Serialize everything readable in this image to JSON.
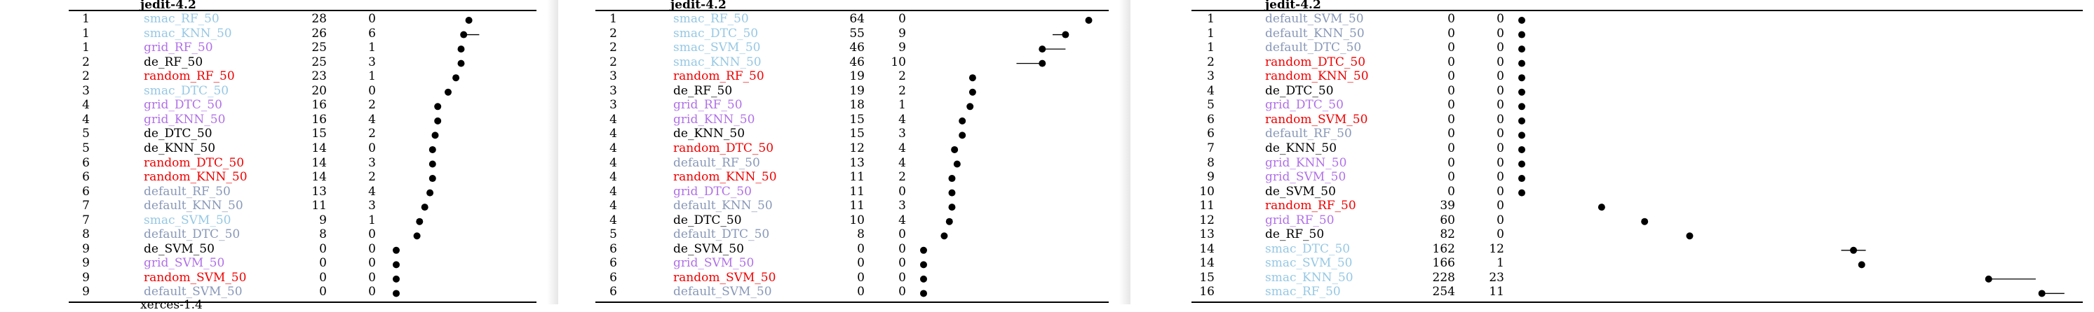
{
  "colors": {
    "smac": "#96c8e4",
    "grid": "#b070e8",
    "de": "#000000",
    "random": "#f00000",
    "default": "#8898b8"
  },
  "panels": [
    {
      "title": "jedit-4.2",
      "footer_label": "xerces-1.4",
      "rows": [
        {
          "rank": "1",
          "name": "smac_RF_50",
          "group": "smac",
          "median": 28,
          "iqr": "0",
          "err_low": 0,
          "err_high": 0
        },
        {
          "rank": "1",
          "name": "smac_KNN_50",
          "group": "smac",
          "median": 26,
          "iqr": "6",
          "err_low": 0,
          "err_high": 6
        },
        {
          "rank": "1",
          "name": "grid_RF_50",
          "group": "grid",
          "median": 25,
          "iqr": "1",
          "err_low": 0,
          "err_high": 1
        },
        {
          "rank": "2",
          "name": "de_RF_50",
          "group": "de",
          "median": 25,
          "iqr": "3",
          "err_low": 0,
          "err_high": 0
        },
        {
          "rank": "2",
          "name": "random_RF_50",
          "group": "random",
          "median": 23,
          "iqr": "1",
          "err_low": 0,
          "err_high": 0
        },
        {
          "rank": "3",
          "name": "smac_DTC_50",
          "group": "smac",
          "median": 20,
          "iqr": "0",
          "err_low": 0,
          "err_high": 0
        },
        {
          "rank": "4",
          "name": "grid_DTC_50",
          "group": "grid",
          "median": 16,
          "iqr": "2",
          "err_low": 0,
          "err_high": 0
        },
        {
          "rank": "4",
          "name": "grid_KNN_50",
          "group": "grid",
          "median": 16,
          "iqr": "4",
          "err_low": 0,
          "err_high": 0
        },
        {
          "rank": "5",
          "name": "de_DTC_50",
          "group": "de",
          "median": 15,
          "iqr": "2",
          "err_low": 0,
          "err_high": 0
        },
        {
          "rank": "5",
          "name": "de_KNN_50",
          "group": "de",
          "median": 14,
          "iqr": "0",
          "err_low": 0,
          "err_high": 0
        },
        {
          "rank": "6",
          "name": "random_DTC_50",
          "group": "random",
          "median": 14,
          "iqr": "3",
          "err_low": 0,
          "err_high": 0
        },
        {
          "rank": "6",
          "name": "random_KNN_50",
          "group": "random",
          "median": 14,
          "iqr": "2",
          "err_low": 0,
          "err_high": 0
        },
        {
          "rank": "6",
          "name": "default_RF_50",
          "group": "default",
          "median": 13,
          "iqr": "4",
          "err_low": 0,
          "err_high": 0
        },
        {
          "rank": "7",
          "name": "default_KNN_50",
          "group": "default",
          "median": 11,
          "iqr": "3",
          "err_low": 0,
          "err_high": 0
        },
        {
          "rank": "7",
          "name": "smac_SVM_50",
          "group": "smac",
          "median": 9,
          "iqr": "1",
          "err_low": 0,
          "err_high": 0
        },
        {
          "rank": "8",
          "name": "default_DTC_50",
          "group": "default",
          "median": 8,
          "iqr": "0",
          "err_low": 0,
          "err_high": 0
        },
        {
          "rank": "9",
          "name": "de_SVM_50",
          "group": "de",
          "median": 0,
          "iqr": "0",
          "err_low": 0,
          "err_high": 0
        },
        {
          "rank": "9",
          "name": "grid_SVM_50",
          "group": "grid",
          "median": 0,
          "iqr": "0",
          "err_low": 0,
          "err_high": 0
        },
        {
          "rank": "9",
          "name": "random_SVM_50",
          "group": "random",
          "median": 0,
          "iqr": "0",
          "err_low": 0,
          "err_high": 0
        },
        {
          "rank": "9",
          "name": "default_SVM_50",
          "group": "default",
          "median": 0,
          "iqr": "0",
          "err_low": 0,
          "err_high": 0
        }
      ]
    },
    {
      "title": "jedit-4.2",
      "footer_label": "",
      "rows": [
        {
          "rank": "1",
          "name": "smac_RF_50",
          "group": "smac",
          "median": 64,
          "iqr": "0",
          "err_low": 0,
          "err_high": 0
        },
        {
          "rank": "2",
          "name": "smac_DTC_50",
          "group": "smac",
          "median": 55,
          "iqr": "9",
          "err_low": 5,
          "err_high": 0
        },
        {
          "rank": "2",
          "name": "smac_SVM_50",
          "group": "smac",
          "median": 46,
          "iqr": "9",
          "err_low": 0,
          "err_high": 9
        },
        {
          "rank": "2",
          "name": "smac_KNN_50",
          "group": "smac",
          "median": 46,
          "iqr": "10",
          "err_low": 10,
          "err_high": 0
        },
        {
          "rank": "3",
          "name": "random_RF_50",
          "group": "random",
          "median": 19,
          "iqr": "2",
          "err_low": 0,
          "err_high": 0
        },
        {
          "rank": "3",
          "name": "de_RF_50",
          "group": "de",
          "median": 19,
          "iqr": "2",
          "err_low": 0,
          "err_high": 0
        },
        {
          "rank": "3",
          "name": "grid_RF_50",
          "group": "grid",
          "median": 18,
          "iqr": "1",
          "err_low": 0,
          "err_high": 0
        },
        {
          "rank": "4",
          "name": "grid_KNN_50",
          "group": "grid",
          "median": 15,
          "iqr": "4",
          "err_low": 0,
          "err_high": 0
        },
        {
          "rank": "4",
          "name": "de_KNN_50",
          "group": "de",
          "median": 15,
          "iqr": "3",
          "err_low": 0,
          "err_high": 0
        },
        {
          "rank": "4",
          "name": "random_DTC_50",
          "group": "random",
          "median": 12,
          "iqr": "4",
          "err_low": 0,
          "err_high": 0
        },
        {
          "rank": "4",
          "name": "default_RF_50",
          "group": "default",
          "median": 13,
          "iqr": "4",
          "err_low": 0,
          "err_high": 0
        },
        {
          "rank": "4",
          "name": "random_KNN_50",
          "group": "random",
          "median": 11,
          "iqr": "2",
          "err_low": 0,
          "err_high": 0
        },
        {
          "rank": "4",
          "name": "grid_DTC_50",
          "group": "grid",
          "median": 11,
          "iqr": "0",
          "err_low": 0,
          "err_high": 0
        },
        {
          "rank": "4",
          "name": "default_KNN_50",
          "group": "default",
          "median": 11,
          "iqr": "3",
          "err_low": 0,
          "err_high": 0
        },
        {
          "rank": "4",
          "name": "de_DTC_50",
          "group": "de",
          "median": 10,
          "iqr": "4",
          "err_low": 0,
          "err_high": 0
        },
        {
          "rank": "5",
          "name": "default_DTC_50",
          "group": "default",
          "median": 8,
          "iqr": "0",
          "err_low": 0,
          "err_high": 0
        },
        {
          "rank": "6",
          "name": "de_SVM_50",
          "group": "de",
          "median": 0,
          "iqr": "0",
          "err_low": 0,
          "err_high": 0
        },
        {
          "rank": "6",
          "name": "grid_SVM_50",
          "group": "grid",
          "median": 0,
          "iqr": "0",
          "err_low": 0,
          "err_high": 0
        },
        {
          "rank": "6",
          "name": "random_SVM_50",
          "group": "random",
          "median": 0,
          "iqr": "0",
          "err_low": 0,
          "err_high": 0
        },
        {
          "rank": "6",
          "name": "default_SVM_50",
          "group": "default",
          "median": 0,
          "iqr": "0",
          "err_low": 0,
          "err_high": 0
        }
      ]
    },
    {
      "title": "jedit-4.2",
      "footer_label": "",
      "rows": [
        {
          "rank": "1",
          "name": "default_SVM_50",
          "group": "default",
          "median": 0,
          "iqr": "0",
          "err_low": 0,
          "err_high": 0
        },
        {
          "rank": "1",
          "name": "default_KNN_50",
          "group": "default",
          "median": 0,
          "iqr": "0",
          "err_low": 0,
          "err_high": 0
        },
        {
          "rank": "1",
          "name": "default_DTC_50",
          "group": "default",
          "median": 0,
          "iqr": "0",
          "err_low": 0,
          "err_high": 0
        },
        {
          "rank": "2",
          "name": "random_DTC_50",
          "group": "random",
          "median": 0,
          "iqr": "0",
          "err_low": 0,
          "err_high": 0
        },
        {
          "rank": "3",
          "name": "random_KNN_50",
          "group": "random",
          "median": 0,
          "iqr": "0",
          "err_low": 0,
          "err_high": 0
        },
        {
          "rank": "4",
          "name": "de_DTC_50",
          "group": "de",
          "median": 0,
          "iqr": "0",
          "err_low": 0,
          "err_high": 0
        },
        {
          "rank": "5",
          "name": "grid_DTC_50",
          "group": "grid",
          "median": 0,
          "iqr": "0",
          "err_low": 0,
          "err_high": 0
        },
        {
          "rank": "6",
          "name": "random_SVM_50",
          "group": "random",
          "median": 0,
          "iqr": "0",
          "err_low": 0,
          "err_high": 0
        },
        {
          "rank": "6",
          "name": "default_RF_50",
          "group": "default",
          "median": 0,
          "iqr": "0",
          "err_low": 0,
          "err_high": 0
        },
        {
          "rank": "7",
          "name": "de_KNN_50",
          "group": "de",
          "median": 0,
          "iqr": "0",
          "err_low": 0,
          "err_high": 0
        },
        {
          "rank": "8",
          "name": "grid_KNN_50",
          "group": "grid",
          "median": 0,
          "iqr": "0",
          "err_low": 0,
          "err_high": 0
        },
        {
          "rank": "9",
          "name": "grid_SVM_50",
          "group": "grid",
          "median": 0,
          "iqr": "0",
          "err_low": 0,
          "err_high": 0
        },
        {
          "rank": "10",
          "name": "de_SVM_50",
          "group": "de",
          "median": 0,
          "iqr": "0",
          "err_low": 0,
          "err_high": 0
        },
        {
          "rank": "11",
          "name": "random_RF_50",
          "group": "random",
          "median": 39,
          "iqr": "0",
          "err_low": 0,
          "err_high": 0
        },
        {
          "rank": "12",
          "name": "grid_RF_50",
          "group": "grid",
          "median": 60,
          "iqr": "0",
          "err_low": 0,
          "err_high": 0
        },
        {
          "rank": "13",
          "name": "de_RF_50",
          "group": "de",
          "median": 82,
          "iqr": "0",
          "err_low": 0,
          "err_high": 0
        },
        {
          "rank": "14",
          "name": "smac_DTC_50",
          "group": "smac",
          "median": 162,
          "iqr": "12",
          "err_low": 6,
          "err_high": 6
        },
        {
          "rank": "14",
          "name": "smac_SVM_50",
          "group": "smac",
          "median": 166,
          "iqr": "1",
          "err_low": 0,
          "err_high": 0
        },
        {
          "rank": "15",
          "name": "smac_KNN_50",
          "group": "smac",
          "median": 228,
          "iqr": "23",
          "err_low": 0,
          "err_high": 23
        },
        {
          "rank": "16",
          "name": "smac_RF_50",
          "group": "smac",
          "median": 254,
          "iqr": "11",
          "err_low": 0,
          "err_high": 11
        }
      ]
    }
  ]
}
